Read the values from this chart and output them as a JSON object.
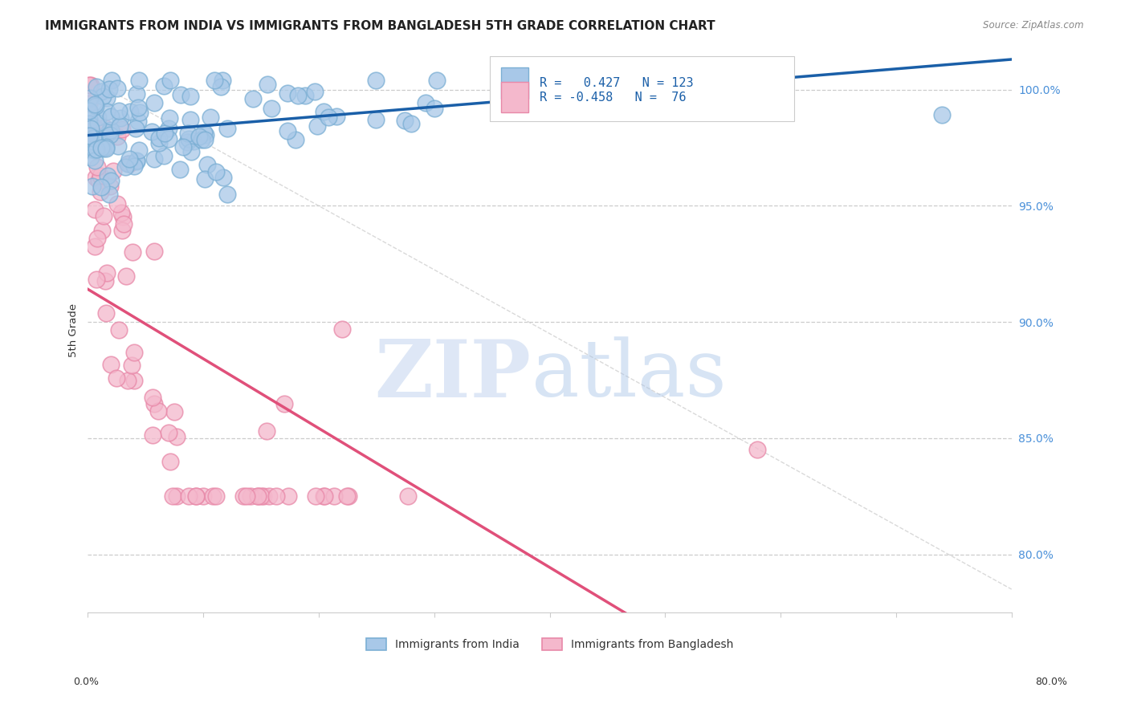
{
  "title": "IMMIGRANTS FROM INDIA VS IMMIGRANTS FROM BANGLADESH 5TH GRADE CORRELATION CHART",
  "source": "Source: ZipAtlas.com",
  "ylabel": "5th Grade",
  "ytick_labels": [
    "80.0%",
    "85.0%",
    "90.0%",
    "95.0%",
    "100.0%"
  ],
  "ytick_values": [
    0.8,
    0.85,
    0.9,
    0.95,
    1.0
  ],
  "xmin": 0.0,
  "xmax": 0.8,
  "ymin": 0.775,
  "ymax": 1.018,
  "india_color": "#a8c8e8",
  "india_color_edge": "#7bafd4",
  "india_color_line": "#1a5fa8",
  "bangladesh_color": "#f4b8cc",
  "bangladesh_color_edge": "#e888a8",
  "bangladesh_color_line": "#e0507a",
  "india_R": 0.427,
  "india_N": 123,
  "bangladesh_R": -0.458,
  "bangladesh_N": 76,
  "background_color": "#ffffff",
  "grid_color": "#cccccc",
  "title_fontsize": 11,
  "watermark_zip_color": "#c8d8f0",
  "watermark_atlas_color": "#a8c4e8"
}
